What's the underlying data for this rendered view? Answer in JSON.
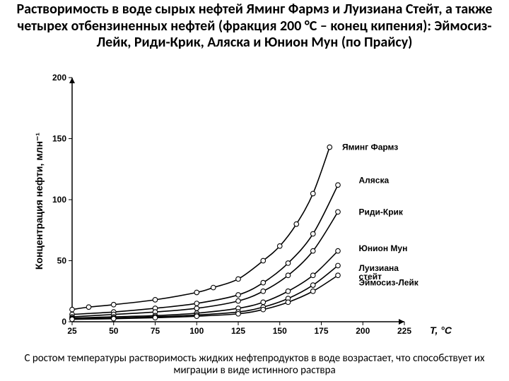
{
  "title": "Растворимость в воде сырых нефтей Яминг Фармз и Луизиана Стейт, а также четырех отбензиненных нефтей (фракция 200 °C – конец кипения): Эймосиз-Лейк, Риди-Крик, Аляска и Юнион Мун (по Прайсу)",
  "caption": "С ростом температуры растворимость жидких нефтепродуктов в воде возрастает, что способствует их миграции в виде истинного раствра",
  "chart": {
    "type": "line",
    "background_color": "#ffffff",
    "axis_color": "#000000",
    "curve_color": "#000000",
    "marker": {
      "shape": "circle",
      "radius": 3.3,
      "fill": "#ffffff",
      "stroke": "#000000"
    },
    "line_width": 1.6,
    "xlabel": "T, °C",
    "ylabel": "Концентрация нефти, млн⁻¹",
    "label_fontsize": 14,
    "tick_fontsize": 12,
    "series_label_fontsize": 12,
    "xlim": [
      25,
      225
    ],
    "ylim": [
      0,
      200
    ],
    "xticks": [
      25,
      50,
      75,
      100,
      125,
      150,
      175,
      200,
      225
    ],
    "yticks": [
      0,
      50,
      100,
      150,
      200
    ],
    "series": [
      {
        "name": "Яминг Фармз",
        "label": "Яминг Фармз",
        "data": [
          [
            25,
            10
          ],
          [
            35,
            12
          ],
          [
            50,
            14
          ],
          [
            75,
            18
          ],
          [
            100,
            24
          ],
          [
            110,
            28
          ],
          [
            125,
            35
          ],
          [
            140,
            50
          ],
          [
            150,
            62
          ],
          [
            160,
            80
          ],
          [
            170,
            105
          ],
          [
            180,
            143
          ]
        ]
      },
      {
        "name": "Аляска",
        "label": "Аляска",
        "data": [
          [
            25,
            6
          ],
          [
            50,
            8
          ],
          [
            75,
            11
          ],
          [
            100,
            15
          ],
          [
            125,
            22
          ],
          [
            140,
            32
          ],
          [
            155,
            48
          ],
          [
            170,
            72
          ],
          [
            185,
            112
          ]
        ]
      },
      {
        "name": "Риди-Крик",
        "label": "Риди-Крик",
        "data": [
          [
            25,
            4
          ],
          [
            50,
            6
          ],
          [
            75,
            8
          ],
          [
            100,
            11
          ],
          [
            125,
            17
          ],
          [
            140,
            25
          ],
          [
            155,
            38
          ],
          [
            170,
            58
          ],
          [
            185,
            90
          ]
        ]
      },
      {
        "name": "Юнион Мун",
        "label": "Юнион Мун",
        "data": [
          [
            25,
            3
          ],
          [
            50,
            4
          ],
          [
            75,
            5
          ],
          [
            100,
            7
          ],
          [
            125,
            11
          ],
          [
            140,
            16
          ],
          [
            155,
            25
          ],
          [
            170,
            38
          ],
          [
            185,
            58
          ]
        ]
      },
      {
        "name": "Луизиана стейт",
        "label": "Луизиана\nстейт",
        "data": [
          [
            25,
            2.5
          ],
          [
            50,
            3
          ],
          [
            75,
            4
          ],
          [
            100,
            5.5
          ],
          [
            125,
            8
          ],
          [
            140,
            12
          ],
          [
            155,
            19
          ],
          [
            170,
            30
          ],
          [
            185,
            46
          ]
        ]
      },
      {
        "name": "Эймосиз-Лейк",
        "label": "Эймосиз-Лейк",
        "data": [
          [
            25,
            2
          ],
          [
            50,
            2.5
          ],
          [
            75,
            3.3
          ],
          [
            100,
            4.5
          ],
          [
            125,
            6.5
          ],
          [
            140,
            10
          ],
          [
            155,
            16
          ],
          [
            170,
            25
          ],
          [
            185,
            38
          ]
        ]
      }
    ],
    "series_label_positions": [
      {
        "x": 185,
        "y": 143
      },
      {
        "x": 195,
        "y": 116
      },
      {
        "x": 195,
        "y": 90
      },
      {
        "x": 195,
        "y": 60
      },
      {
        "x": 195,
        "y": 44
      },
      {
        "x": 195,
        "y": 32
      }
    ]
  }
}
